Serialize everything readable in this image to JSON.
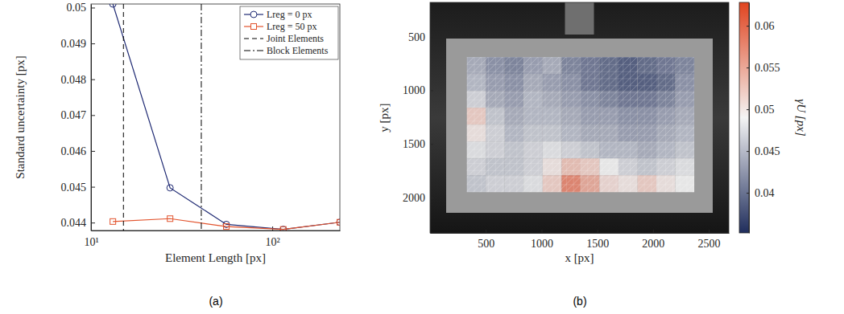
{
  "chart_data": [
    {
      "type": "line",
      "caption": "(a)",
      "xlabel": "Element Length [px]",
      "ylabel": "Standard uncertainty [px]",
      "log": "x",
      "xlim": [
        10,
        236
      ],
      "xticks": [
        {
          "value": 10,
          "label": "10¹"
        },
        {
          "value": 100,
          "label": "10²"
        }
      ],
      "ylim": [
        0.04378,
        0.0501
      ],
      "yticks": [
        0.044,
        0.045,
        0.046,
        0.047,
        0.048,
        0.049,
        0.05
      ],
      "legend": "top-right",
      "x": [
        13.2,
        27.3,
        55.8,
        115,
        236
      ],
      "series": [
        {
          "name": "Lreg = 0 px",
          "color": "#1f2a73",
          "marker": "circle",
          "line_style": "solid",
          "values": [
            0.0501,
            0.04497,
            0.04395,
            0.04381,
            0.04401
          ]
        },
        {
          "name": "Lreg = 50 px",
          "color": "#e2532d",
          "marker": "square",
          "line_style": "solid",
          "values": [
            0.04403,
            0.04411,
            0.04389,
            0.04381,
            0.04401
          ]
        },
        {
          "name": "Joint Elements",
          "type": "vline",
          "color": "#000000",
          "line_style": "dashed",
          "x": [
            15.1
          ]
        },
        {
          "name": "Block Elements",
          "type": "vline",
          "color": "#000000",
          "line_style": "dashdot",
          "x": [
            40.6
          ]
        }
      ]
    },
    {
      "type": "heatmap",
      "caption": "(b)",
      "xlabel": "x [px]",
      "ylabel": "y [px]",
      "xlim": [
        0,
        2680
      ],
      "ylim": [
        180,
        2330
      ],
      "xticks": [
        500,
        1000,
        1500,
        2000,
        2500
      ],
      "yticks": [
        500,
        1000,
        1500,
        2000
      ],
      "cell_x": [
        330,
        500,
        670,
        840,
        1010,
        1180,
        1350,
        1520,
        1690,
        1860,
        2030,
        2200,
        2370
      ],
      "cell_y": [
        690,
        847.5,
        1005,
        1162.5,
        1320,
        1477.5,
        1635,
        1792.5,
        1950
      ],
      "cells": [
        [
          0.044,
          0.042,
          0.041,
          0.043,
          0.044,
          0.041,
          0.04,
          0.039,
          0.038,
          0.039,
          0.04,
          0.041
        ],
        [
          0.045,
          0.043,
          0.042,
          0.044,
          0.043,
          0.042,
          0.04,
          0.039,
          0.038,
          0.038,
          0.039,
          0.042
        ],
        [
          0.047,
          0.044,
          0.043,
          0.045,
          0.044,
          0.043,
          0.042,
          0.041,
          0.04,
          0.04,
          0.041,
          0.043
        ],
        [
          0.052,
          0.046,
          0.044,
          0.045,
          0.045,
          0.044,
          0.043,
          0.043,
          0.042,
          0.042,
          0.043,
          0.044
        ],
        [
          0.05,
          0.047,
          0.045,
          0.046,
          0.046,
          0.045,
          0.044,
          0.044,
          0.043,
          0.043,
          0.044,
          0.045
        ],
        [
          0.048,
          0.047,
          0.046,
          0.047,
          0.048,
          0.047,
          0.046,
          0.045,
          0.045,
          0.044,
          0.045,
          0.046
        ],
        [
          0.047,
          0.046,
          0.046,
          0.047,
          0.05,
          0.053,
          0.052,
          0.049,
          0.047,
          0.046,
          0.047,
          0.048
        ],
        [
          0.046,
          0.047,
          0.047,
          0.048,
          0.052,
          0.058,
          0.055,
          0.051,
          0.05,
          0.052,
          0.05,
          0.049
        ]
      ],
      "colorbar": {
        "label": "γU [px]",
        "range": [
          0.0352,
          0.0628
        ],
        "ticks": [
          0.04,
          0.045,
          0.05,
          0.055,
          0.06
        ]
      }
    }
  ]
}
